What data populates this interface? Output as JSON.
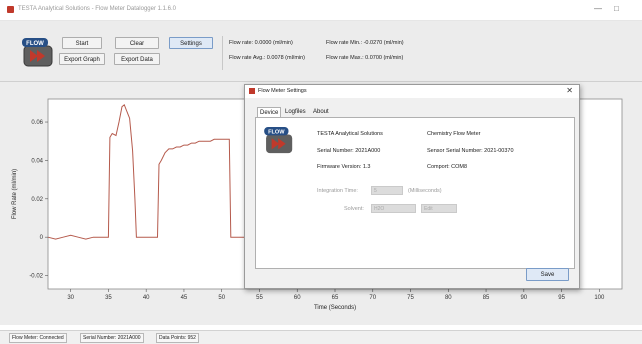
{
  "window": {
    "title": "TESTA Analytical Solutions - Flow Meter Datalogger 1.1.6.0",
    "minimize_glyph": "—",
    "maximize_glyph": "□"
  },
  "toolbar": {
    "logo_text": "FLOW",
    "start_label": "Start",
    "clear_label": "Clear",
    "settings_label": "Settings",
    "export_graph_label": "Export Graph",
    "export_data_label": "Export Data"
  },
  "readouts": {
    "flow_rate": "Flow rate: 0.0000 (ml/min)",
    "flow_rate_avg": "Flow rate Avg.: 0.0078 (ml/min)",
    "flow_rate_min": "Flow rate Min.: -0.0270 (ml/min)",
    "flow_rate_max": "Flow rate Max.: 0.0700 (ml/min)"
  },
  "chart_data": {
    "type": "line",
    "title": "",
    "xlabel": "Time (Seconds)",
    "ylabel": "Flow Rate (ml/min)",
    "xlim": [
      27,
      103
    ],
    "ylim": [
      -0.027,
      0.072
    ],
    "x_ticks": [
      30,
      35,
      40,
      45,
      50,
      55,
      60,
      65,
      70,
      75,
      80,
      85,
      90,
      95,
      100
    ],
    "y_ticks": [
      -0.02,
      0,
      0.02,
      0.04,
      0.06
    ],
    "y_tick_labels": [
      "-0.02",
      "0",
      "0.02",
      "0.04",
      "0.06"
    ],
    "grid": false,
    "line_color": "#b55a4c",
    "series": [
      {
        "x": [
          27,
          28,
          29,
          30,
          31,
          32,
          33,
          34,
          35,
          35.2,
          35.5,
          36,
          36.4,
          36.8,
          37.1,
          37.4,
          37.8,
          38.2,
          38.5,
          38.7,
          39,
          40,
          41,
          41.5,
          41.7,
          42,
          42.5,
          43,
          43.5,
          44,
          44.5,
          45,
          45.5,
          46,
          46.5,
          47,
          47.5,
          48,
          48.5,
          49,
          50,
          51,
          51.2,
          52,
          53,
          53.2
        ],
        "y": [
          0.0,
          -0.001,
          0.0,
          0.001,
          0.0,
          -0.001,
          0.0,
          0.0,
          0.0,
          0.052,
          0.054,
          0.053,
          0.06,
          0.068,
          0.069,
          0.066,
          0.062,
          0.045,
          0.02,
          0.0,
          0.0,
          0.0,
          0.0,
          0.0,
          0.038,
          0.04,
          0.044,
          0.046,
          0.046,
          0.047,
          0.047,
          0.048,
          0.048,
          0.049,
          0.049,
          0.05,
          0.05,
          0.05,
          0.05,
          0.051,
          0.051,
          0.051,
          0.0,
          0.0,
          0.0,
          0.0
        ]
      }
    ]
  },
  "dialog": {
    "title": "Flow Meter Settings",
    "close_glyph": "✕",
    "tabs": [
      "Device",
      "Logfiles",
      "About"
    ],
    "company": "TESTA Analytical Solutions",
    "product": "Chemistry Flow Meter",
    "serial_number": "Serial Number: 2021A000",
    "sensor_serial": "Sensor Serial Number: 2021-00370",
    "firmware": "Firmware Version: 1.3",
    "comport": "Comport: COM8",
    "integration_label": "Integration Time:",
    "integration_value": "5",
    "integration_unit": "(Milliseconds)",
    "solvent_label": "Solvent:",
    "solvent_value": "H2O",
    "solvent_edit": "Edit",
    "save_label": "Save"
  },
  "status": {
    "connection": "Flow Meter: Connected",
    "serial": "Serial Number: 2021A000",
    "data_points": "Data Points: 952"
  },
  "colors": {
    "accent_logo": "#c0392b",
    "line": "#b55a4c",
    "dialog_bg": "#f0f0f0"
  }
}
